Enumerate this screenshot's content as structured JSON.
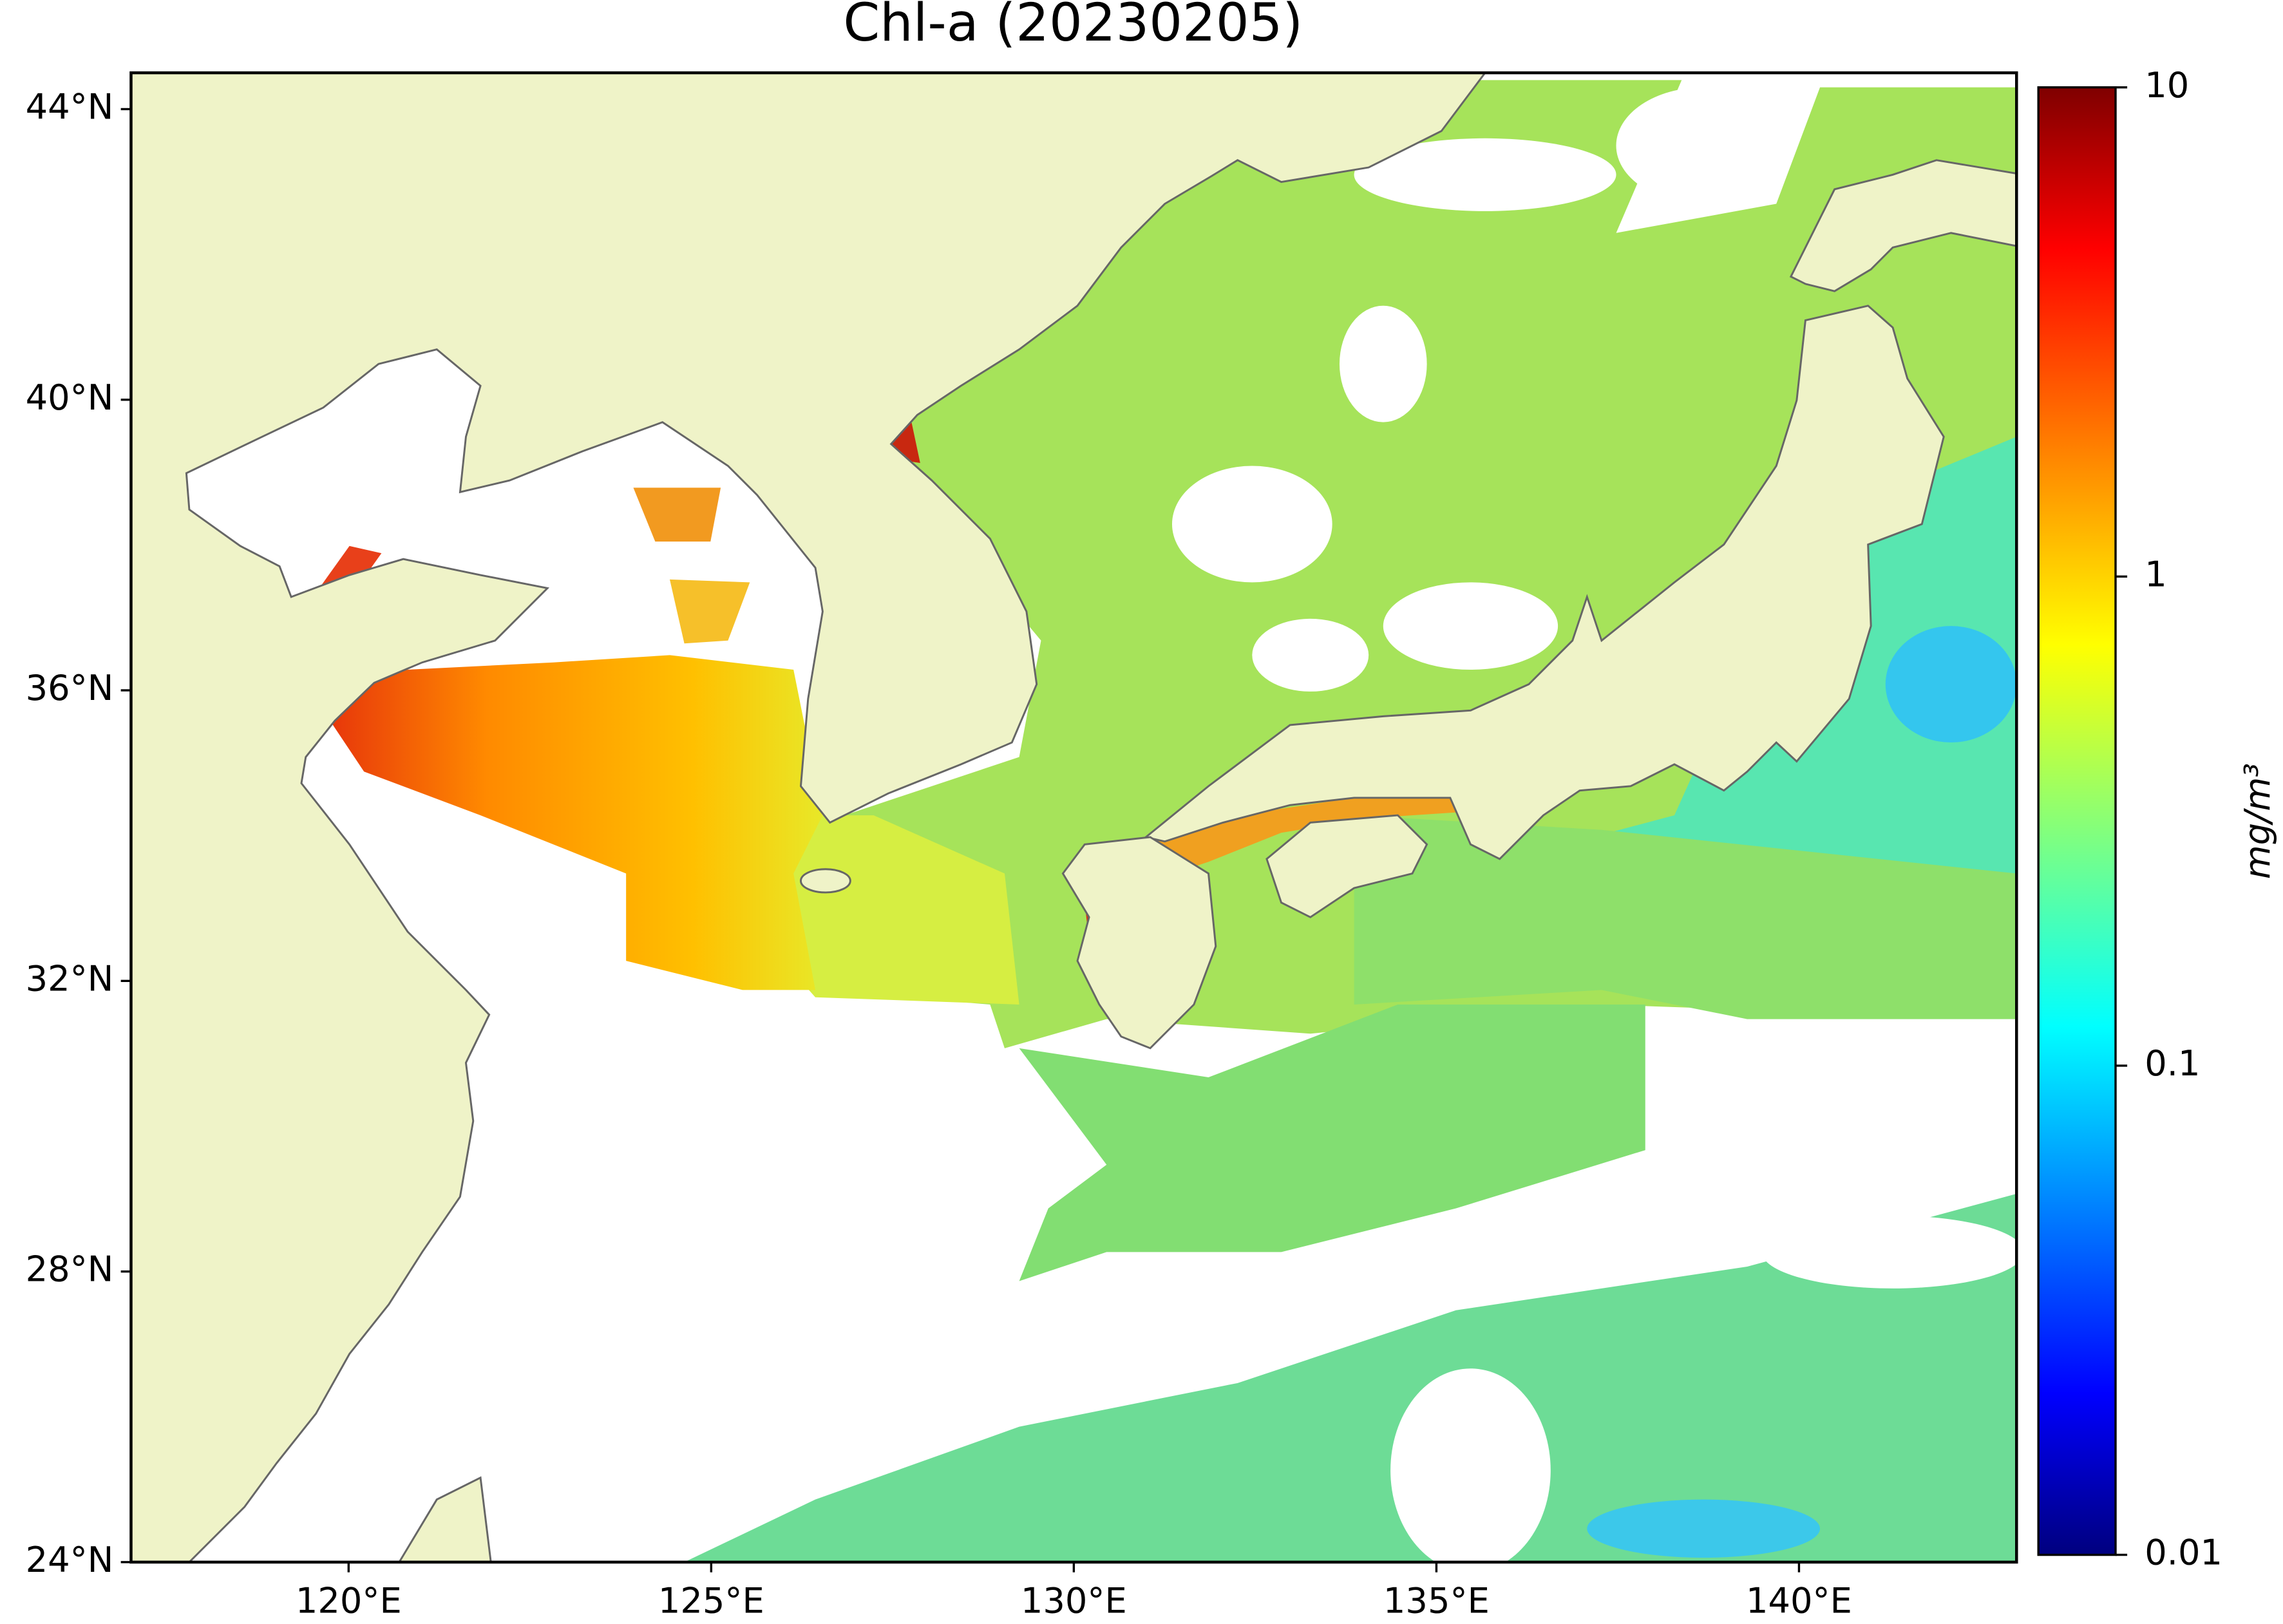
{
  "chart_data": {
    "type": "map",
    "title": "Chl-a (20230205)",
    "xlim": [
      117,
      143
    ],
    "ylim": [
      24,
      44.5
    ],
    "xticks": [
      {
        "value": 120,
        "label": "120°E"
      },
      {
        "value": 125,
        "label": "125°E"
      },
      {
        "value": 130,
        "label": "130°E"
      },
      {
        "value": 135,
        "label": "135°E"
      },
      {
        "value": 140,
        "label": "140°E"
      }
    ],
    "yticks": [
      {
        "value": 24,
        "label": "24°N"
      },
      {
        "value": 28,
        "label": "28°N"
      },
      {
        "value": 32,
        "label": "32°N"
      },
      {
        "value": 36,
        "label": "36°N"
      },
      {
        "value": 40,
        "label": "40°N"
      },
      {
        "value": 44,
        "label": "44°N"
      }
    ],
    "colorbar": {
      "label": "mg/m³",
      "lim": [
        0.01,
        10
      ],
      "ticks": [
        0.01,
        0.1,
        1,
        10
      ],
      "scale": "log",
      "colormap": "jet"
    }
  }
}
